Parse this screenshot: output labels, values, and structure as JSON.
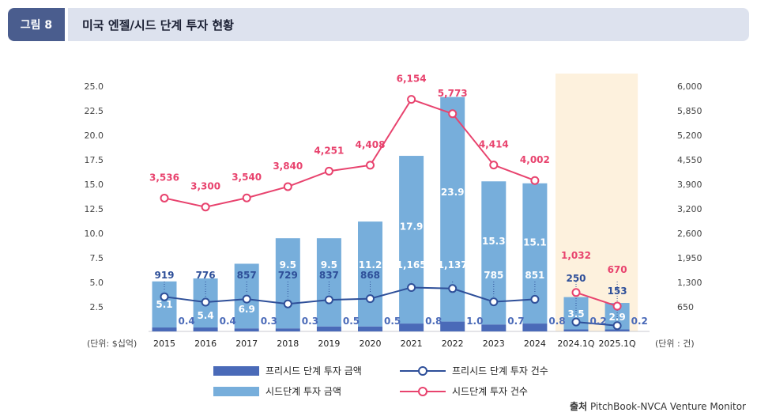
{
  "figure": {
    "tag": "그림 8",
    "title": "미국 엔젤/시드 단계 투자 현황"
  },
  "colors": {
    "preseed_bar": "#4a6ab8",
    "seed_bar": "#77aedb",
    "preseed_line": "#2e4f99",
    "seed_line": "#e8436e",
    "highlight_bg": "#fdf1dd",
    "header_tag": "#4a5d8e",
    "header_bar": "#dde2ee"
  },
  "chart_data": {
    "type": "bar",
    "categories": [
      "2015",
      "2016",
      "2017",
      "2018",
      "2019",
      "2020",
      "2021",
      "2022",
      "2023",
      "2024",
      "2024.1Q",
      "2025.1Q"
    ],
    "highlighted_categories": [
      "2024.1Q",
      "2025.1Q"
    ],
    "left_axis": {
      "unit_label": "(단위: $십억)",
      "ylim": [
        0,
        27.5
      ],
      "ticks": [
        "2.5",
        "5.0",
        "7.5",
        "10.0",
        "12.5",
        "15.0",
        "17.5",
        "20.0",
        "22.5",
        "25.0"
      ]
    },
    "right_axis": {
      "unit_label": "(단위 : 건)",
      "ylim": [
        0,
        6600
      ],
      "ticks": [
        "650",
        "1,300",
        "1,950",
        "2,600",
        "3,200",
        "3,900",
        "4,550",
        "5,200",
        "5,850",
        "6,000"
      ]
    },
    "series": [
      {
        "name": "프리시드 단계 투자 금액",
        "kind": "bar",
        "axis": "left",
        "values": [
          0.4,
          0.4,
          0.3,
          0.3,
          0.5,
          0.5,
          0.8,
          1.0,
          0.7,
          0.8,
          0.2,
          0.2
        ],
        "labels": [
          "0.4",
          "0.4",
          "0.3",
          "0.3",
          "0.5",
          "0.5",
          "0.8",
          "1.0",
          "0.7",
          "0.8",
          "0.2",
          "0.2"
        ]
      },
      {
        "name": "시드단계 투자 금액",
        "kind": "bar",
        "axis": "left",
        "values": [
          5.1,
          5.4,
          6.9,
          9.5,
          9.5,
          11.2,
          17.9,
          23.9,
          15.3,
          15.1,
          3.5,
          2.9
        ],
        "labels": [
          "5.1",
          "5.4",
          "6.9",
          "9.5",
          "9.5",
          "11.2",
          "17.9",
          "23.9",
          "15.3",
          "15.1",
          "3.5",
          "2.9"
        ]
      },
      {
        "name": "프리시드 단계 투자 건수",
        "kind": "line",
        "axis": "right",
        "values": [
          919,
          776,
          857,
          729,
          837,
          868,
          1165,
          1137,
          785,
          851,
          250,
          153
        ],
        "labels": [
          "919",
          "776",
          "857",
          "729",
          "837",
          "868",
          "1,165",
          "1,137",
          "785",
          "851",
          "250",
          "153"
        ]
      },
      {
        "name": "시드단계 투자 건수",
        "kind": "line",
        "axis": "right",
        "values": [
          3536,
          3300,
          3540,
          3840,
          4251,
          4408,
          6154,
          5773,
          4414,
          4002,
          1032,
          670
        ],
        "labels": [
          "3,536",
          "3,300",
          "3,540",
          "3,840",
          "4,251",
          "4,408",
          "6,154",
          "5,773",
          "4,414",
          "4,002",
          "1,032",
          "670"
        ]
      }
    ],
    "grid": false,
    "legend_position": "bottom"
  },
  "source": {
    "prefix": "출처",
    "text": "PitchBook-NVCA Venture Monitor"
  }
}
